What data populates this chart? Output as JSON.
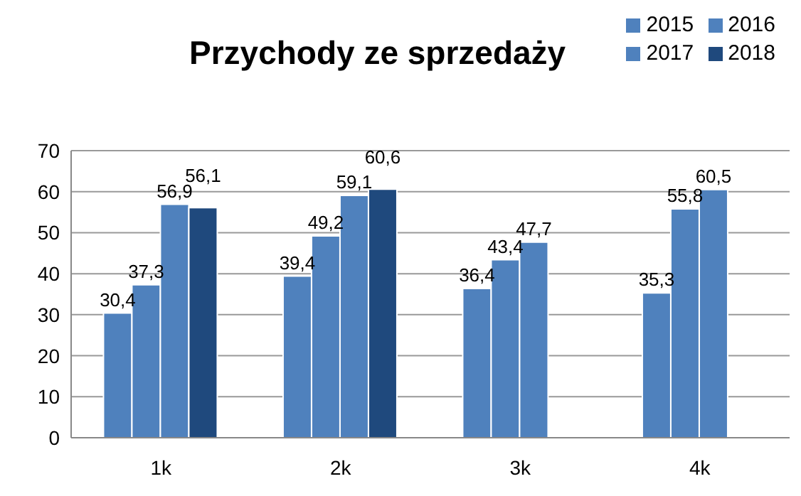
{
  "chart_data": {
    "type": "bar",
    "title": "Przychody ze sprzedaży",
    "categories": [
      "1k",
      "2k",
      "3k",
      "4k"
    ],
    "series": [
      {
        "name": "2015",
        "color": "#4f81bd",
        "values": [
          30.4,
          39.4,
          36.4,
          35.3
        ],
        "value_labels": [
          "30,4",
          "39,4",
          "36,4",
          "35,3"
        ]
      },
      {
        "name": "2016",
        "color": "#4f81bd",
        "values": [
          37.3,
          49.2,
          43.4,
          55.8
        ],
        "value_labels": [
          "37,3",
          "49,2",
          "43,4",
          "55,8"
        ]
      },
      {
        "name": "2017",
        "color": "#4f81bd",
        "values": [
          56.9,
          59.1,
          47.7,
          60.5
        ],
        "value_labels": [
          "56,9",
          "59,1",
          "47,7",
          "60,5"
        ]
      },
      {
        "name": "2018",
        "color": "#1f497d",
        "values": [
          56.1,
          60.6,
          null,
          null
        ],
        "value_labels": [
          "56,1",
          "60,6",
          null,
          null
        ]
      }
    ],
    "ylim": [
      0,
      70
    ],
    "yticks": [
      0,
      10,
      20,
      30,
      40,
      50,
      60,
      70
    ],
    "grid": "y",
    "legend": "top right"
  }
}
